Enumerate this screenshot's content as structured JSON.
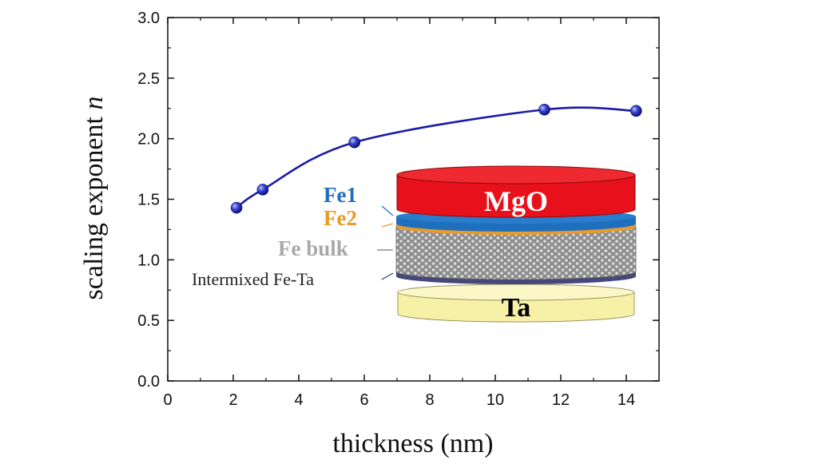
{
  "chart_data": {
    "type": "scatter",
    "xlabel": "thickness (nm)",
    "ylabel_main": "scaling exponent ",
    "ylabel_var": "n",
    "xlim": [
      0,
      15
    ],
    "ylim": [
      0.0,
      3.0
    ],
    "x_ticks": [
      "0",
      "2",
      "4",
      "6",
      "8",
      "10",
      "12",
      "14"
    ],
    "y_ticks": [
      "0.0",
      "0.5",
      "1.0",
      "1.5",
      "2.0",
      "2.5",
      "3.0"
    ],
    "grid": false,
    "series": [
      {
        "x": [
          2.1,
          2.9,
          5.7,
          11.5,
          14.3
        ],
        "y": [
          1.43,
          1.58,
          1.97,
          2.24,
          2.23
        ],
        "color": "#1a1aa8",
        "fit_line": true
      }
    ],
    "inset": {
      "layers": {
        "mgo": "MgO",
        "fe1": "Fe1",
        "fe2": "Fe2",
        "fe_bulk": "Fe bulk",
        "intermixed": "Intermixed Fe-Ta",
        "ta": "Ta"
      },
      "colors": {
        "mgo": "#e8101a",
        "fe1": "#1f6fbf",
        "fe2": "#e89a2a",
        "fe_bulk": "#a9a9a9",
        "ta": "#f7f1a8"
      }
    }
  }
}
